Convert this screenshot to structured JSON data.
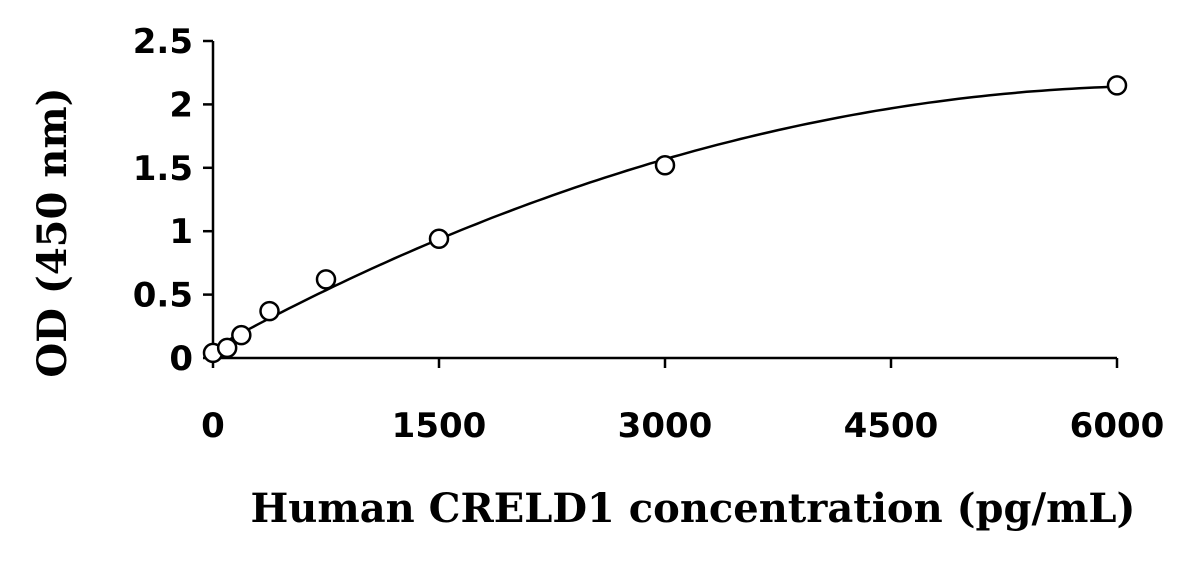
{
  "chart_data": {
    "type": "scatter",
    "title": "",
    "xlabel": "Human CRELD1 concentration (pg/mL)",
    "ylabel": "OD (450 nm)",
    "xlim": [
      0,
      6000
    ],
    "ylim": [
      0,
      2.5
    ],
    "xticks": [
      "0",
      "1500",
      "3000",
      "4500",
      "6000"
    ],
    "yticks": [
      "0",
      "0.5",
      "1",
      "1.5",
      "2",
      "2.5"
    ],
    "grid": false,
    "legend": "none",
    "series": [
      {
        "x": [
          0,
          94,
          188,
          375,
          750,
          1500,
          3000,
          6000
        ],
        "y": [
          0.04,
          0.08,
          0.18,
          0.37,
          0.62,
          0.94,
          1.52,
          2.15
        ],
        "marker": "open-circle",
        "fit": "polynomial",
        "color": "#000000"
      }
    ]
  }
}
